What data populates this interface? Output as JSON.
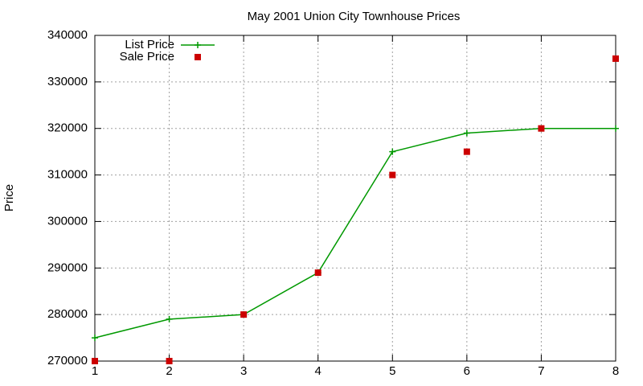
{
  "chart_data": {
    "type": "line",
    "title": "May 2001 Union City Townhouse Prices",
    "y_label": "Price",
    "x": [
      1,
      2,
      3,
      4,
      5,
      6,
      7,
      8
    ],
    "series": [
      {
        "name": "List Price",
        "color": "#009900",
        "style": "linespoints",
        "values": [
          275000,
          279000,
          280000,
          289000,
          315000,
          319000,
          320000,
          320000
        ]
      },
      {
        "name": "Sale Price",
        "color": "#cc0000",
        "style": "points",
        "values": [
          270000,
          270000,
          280000,
          289000,
          310000,
          315000,
          320000,
          335000
        ]
      }
    ],
    "xlim": [
      1,
      8
    ],
    "xticks": [
      1,
      2,
      3,
      4,
      5,
      6,
      7,
      8
    ],
    "ylim": [
      270000,
      340000
    ],
    "yticks": [
      270000,
      280000,
      290000,
      300000,
      310000,
      320000,
      330000,
      340000
    ],
    "grid": true,
    "legend": "top-left"
  }
}
